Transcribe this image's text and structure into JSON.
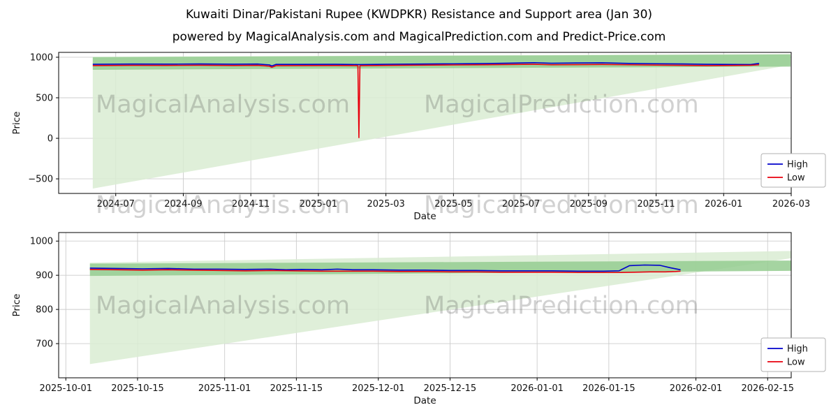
{
  "page": {
    "title": "Kuwaiti Dinar/Pakistani Rupee (KWDPKR) Resistance and Support area (Jan 30)",
    "subtitle": "powered by MagicalAnalysis.com and MagicalPrediction.com and Predict-Price.com"
  },
  "watermarks": {
    "left": "MagicalAnalysis.com",
    "right": "MagicalPrediction.com"
  },
  "colors": {
    "high_line": "#0000cc",
    "low_line": "#e8000d",
    "support_light": "#d9ecd2",
    "support_dark": "#95cc90",
    "grid": "#cccccc"
  },
  "chart_data": [
    {
      "type": "line",
      "name": "main-history-chart",
      "title": "",
      "xlabel": "Date",
      "ylabel": "Price",
      "xlim": [
        -1.69,
        20.0
      ],
      "ylim": [
        -680,
        1060
      ],
      "grid": true,
      "legend_position": "lower right",
      "xticks": [
        {
          "v": 0,
          "label": "2024-07"
        },
        {
          "v": 2,
          "label": "2024-09"
        },
        {
          "v": 4,
          "label": "2024-11"
        },
        {
          "v": 6,
          "label": "2025-01"
        },
        {
          "v": 8,
          "label": "2025-03"
        },
        {
          "v": 10,
          "label": "2025-05"
        },
        {
          "v": 12,
          "label": "2025-07"
        },
        {
          "v": 14,
          "label": "2025-09"
        },
        {
          "v": 16,
          "label": "2025-11"
        },
        {
          "v": 18,
          "label": "2026-01"
        },
        {
          "v": 20,
          "label": "2026-03"
        }
      ],
      "yticks": [
        {
          "v": -500,
          "label": "−500"
        },
        {
          "v": 0,
          "label": "0"
        },
        {
          "v": 500,
          "label": "500"
        },
        {
          "v": 1000,
          "label": "1000"
        }
      ],
      "bands": [
        {
          "name": "support-area-light",
          "color": "#d9ecd2",
          "opacity": 0.85,
          "lower": [
            [
              -0.68,
              -620
            ],
            [
              19.98,
              905
            ]
          ],
          "upper": [
            [
              -0.68,
              1005
            ],
            [
              19.98,
              1040
            ]
          ]
        },
        {
          "name": "resistance-band-dark",
          "color": "#95cc90",
          "opacity": 0.85,
          "lower": [
            [
              -0.68,
              845
            ],
            [
              19.98,
              885
            ]
          ],
          "upper": [
            [
              -0.68,
              1002
            ],
            [
              19.98,
              1035
            ]
          ]
        }
      ],
      "series": [
        {
          "name": "High",
          "color": "#0000cc",
          "points": [
            [
              -0.68,
              913
            ],
            [
              0.5,
              916
            ],
            [
              1.5,
              915
            ],
            [
              2.5,
              917
            ],
            [
              3.5,
              914
            ],
            [
              4.2,
              916
            ],
            [
              4.55,
              906
            ],
            [
              4.62,
              892
            ],
            [
              4.75,
              912
            ],
            [
              5.5,
              912
            ],
            [
              6.5,
              913
            ],
            [
              7.0,
              911
            ],
            [
              7.17,
              910
            ],
            [
              7.23,
              910
            ],
            [
              8,
              913
            ],
            [
              9,
              916
            ],
            [
              10,
              919
            ],
            [
              11,
              923
            ],
            [
              11.8,
              928
            ],
            [
              12.4,
              933
            ],
            [
              12.9,
              926
            ],
            [
              13.6,
              929
            ],
            [
              14.4,
              931
            ],
            [
              15.2,
              924
            ],
            [
              16,
              920
            ],
            [
              16.8,
              917
            ],
            [
              17.5,
              913
            ],
            [
              18.3,
              911
            ],
            [
              18.8,
              910
            ],
            [
              19.05,
              924
            ]
          ]
        },
        {
          "name": "Low",
          "color": "#e8000d",
          "points": [
            [
              -0.68,
              897
            ],
            [
              0.5,
              900
            ],
            [
              1.5,
              899
            ],
            [
              2.5,
              901
            ],
            [
              3.5,
              898
            ],
            [
              4.2,
              900
            ],
            [
              4.55,
              890
            ],
            [
              4.62,
              876
            ],
            [
              4.75,
              896
            ],
            [
              5.5,
              897
            ],
            [
              6.5,
              898
            ],
            [
              7.0,
              897
            ],
            [
              7.17,
              896
            ],
            [
              7.2,
              8
            ],
            [
              7.23,
              896
            ],
            [
              8,
              899
            ],
            [
              9,
              902
            ],
            [
              10,
              905
            ],
            [
              11,
              908
            ],
            [
              11.8,
              911
            ],
            [
              12.4,
              913
            ],
            [
              12.9,
              907
            ],
            [
              13.6,
              909
            ],
            [
              14.4,
              911
            ],
            [
              15.2,
              907
            ],
            [
              16,
              903
            ],
            [
              16.8,
              900
            ],
            [
              17.5,
              897
            ],
            [
              18.3,
              899
            ],
            [
              18.8,
              901
            ],
            [
              19.05,
              907
            ]
          ]
        }
      ]
    },
    {
      "type": "line",
      "name": "recent-zoom-chart",
      "title": "",
      "xlabel": "Date",
      "ylabel": "Price",
      "xlim": [
        -1.4,
        141.6
      ],
      "ylim": [
        600,
        1025
      ],
      "grid": true,
      "legend_position": "lower right",
      "xticks": [
        {
          "v": 0,
          "label": "2025-10-01"
        },
        {
          "v": 14,
          "label": "2025-10-15"
        },
        {
          "v": 31,
          "label": "2025-11-01"
        },
        {
          "v": 45,
          "label": "2025-11-15"
        },
        {
          "v": 61,
          "label": "2025-12-01"
        },
        {
          "v": 75,
          "label": "2025-12-15"
        },
        {
          "v": 92,
          "label": "2026-01-01"
        },
        {
          "v": 106,
          "label": "2026-01-15"
        },
        {
          "v": 123,
          "label": "2026-02-01"
        },
        {
          "v": 137,
          "label": "2026-02-15"
        }
      ],
      "yticks": [
        {
          "v": 700,
          "label": "700"
        },
        {
          "v": 800,
          "label": "800"
        },
        {
          "v": 900,
          "label": "900"
        },
        {
          "v": 1000,
          "label": "1000"
        }
      ],
      "bands": [
        {
          "name": "support-area-light",
          "color": "#d9ecd2",
          "opacity": 0.85,
          "lower": [
            [
              4.7,
              640
            ],
            [
              141.6,
              950
            ]
          ],
          "upper": [
            [
              4.7,
              937
            ],
            [
              141.6,
              971
            ]
          ]
        },
        {
          "name": "resistance-band-dark",
          "color": "#95cc90",
          "opacity": 0.85,
          "lower": [
            [
              4.7,
              898
            ],
            [
              141.6,
              913
            ]
          ],
          "upper": [
            [
              4.7,
              934
            ],
            [
              141.6,
              943
            ]
          ]
        }
      ],
      "series": [
        {
          "name": "High",
          "color": "#0000cc",
          "points": [
            [
              4.7,
              921
            ],
            [
              10,
              920
            ],
            [
              15,
              919
            ],
            [
              20,
              920
            ],
            [
              25,
              918
            ],
            [
              30,
              918
            ],
            [
              35,
              917
            ],
            [
              40,
              918
            ],
            [
              43,
              916
            ],
            [
              46,
              917
            ],
            [
              50,
              916
            ],
            [
              53,
              918
            ],
            [
              56,
              916
            ],
            [
              60,
              916
            ],
            [
              65,
              915
            ],
            [
              70,
              915
            ],
            [
              75,
              914
            ],
            [
              80,
              914
            ],
            [
              85,
              913
            ],
            [
              90,
              913
            ],
            [
              95,
              913
            ],
            [
              100,
              912
            ],
            [
              105,
              912
            ],
            [
              108,
              913
            ],
            [
              110,
              928
            ],
            [
              113,
              930
            ],
            [
              116,
              929
            ],
            [
              118,
              922
            ],
            [
              120,
              916
            ]
          ]
        },
        {
          "name": "Low",
          "color": "#e8000d",
          "points": [
            [
              4.7,
              917
            ],
            [
              10,
              916
            ],
            [
              15,
              915
            ],
            [
              20,
              916
            ],
            [
              25,
              915
            ],
            [
              30,
              914
            ],
            [
              35,
              913
            ],
            [
              40,
              914
            ],
            [
              45,
              913
            ],
            [
              50,
              912
            ],
            [
              55,
              912
            ],
            [
              60,
              912
            ],
            [
              65,
              911
            ],
            [
              70,
              911
            ],
            [
              75,
              910
            ],
            [
              80,
              910
            ],
            [
              85,
              909
            ],
            [
              90,
              909
            ],
            [
              95,
              909
            ],
            [
              100,
              908
            ],
            [
              105,
              908
            ],
            [
              108,
              908
            ],
            [
              111,
              909
            ],
            [
              114,
              910
            ],
            [
              117,
              910
            ],
            [
              119,
              911
            ],
            [
              120,
              912
            ]
          ]
        }
      ]
    }
  ]
}
